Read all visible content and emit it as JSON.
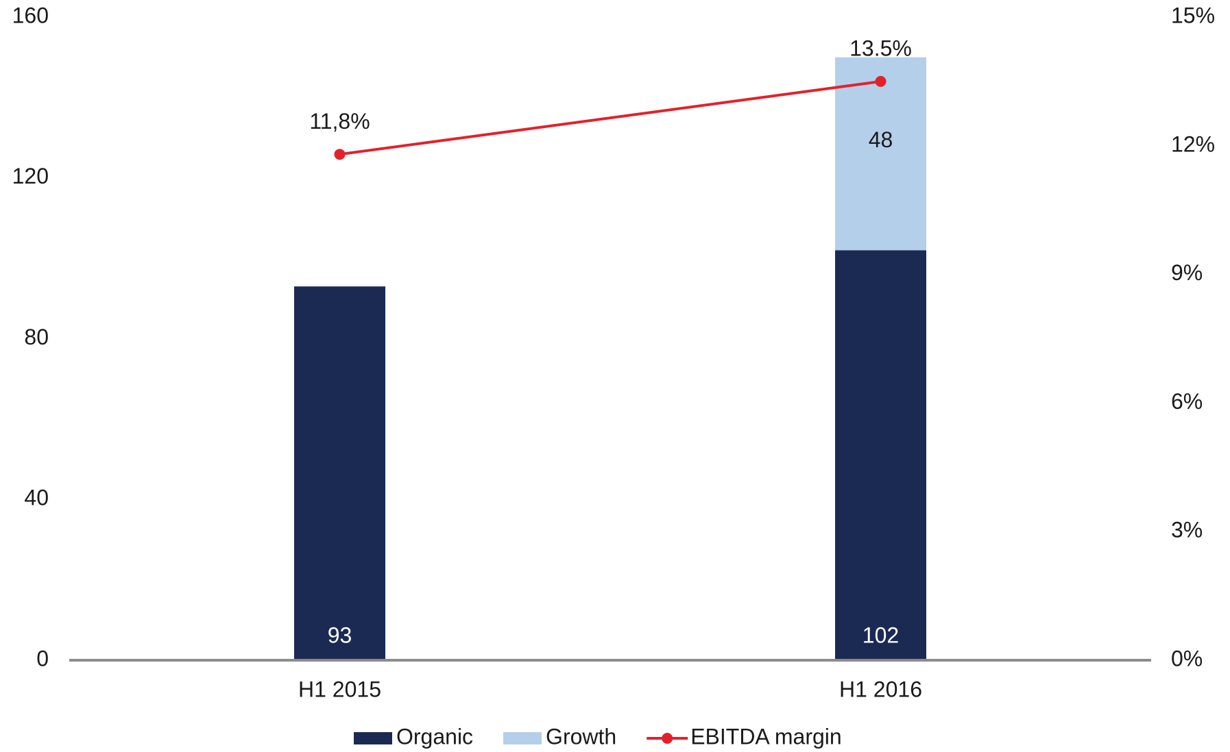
{
  "chart_data": {
    "type": "bar",
    "categories": [
      "H1 2015",
      "H1 2016"
    ],
    "series": [
      {
        "name": "Organic",
        "color": "#1b2a52",
        "values": [
          93,
          102
        ],
        "stack": true
      },
      {
        "name": "Growth",
        "color": "#b4cfea",
        "values": [
          null,
          48
        ],
        "stack": true
      },
      {
        "name": "EBITDA margin",
        "color": "#e3212b",
        "values": [
          11.8,
          13.5
        ],
        "value_labels": [
          "11,8%",
          "13.5%"
        ],
        "axis": "y2",
        "type": "line"
      }
    ],
    "ylim": [
      0,
      160
    ],
    "yticks": [
      0,
      40,
      80,
      120,
      160
    ],
    "y2lim": [
      0,
      15
    ],
    "y2ticks": [
      {
        "value": 0,
        "label": "0%"
      },
      {
        "value": 3,
        "label": "3%"
      },
      {
        "value": 6,
        "label": "6%"
      },
      {
        "value": 9,
        "label": "9%"
      },
      {
        "value": 12,
        "label": "12%"
      },
      {
        "value": 15,
        "label": "15%"
      }
    ],
    "legend": "bottom"
  }
}
